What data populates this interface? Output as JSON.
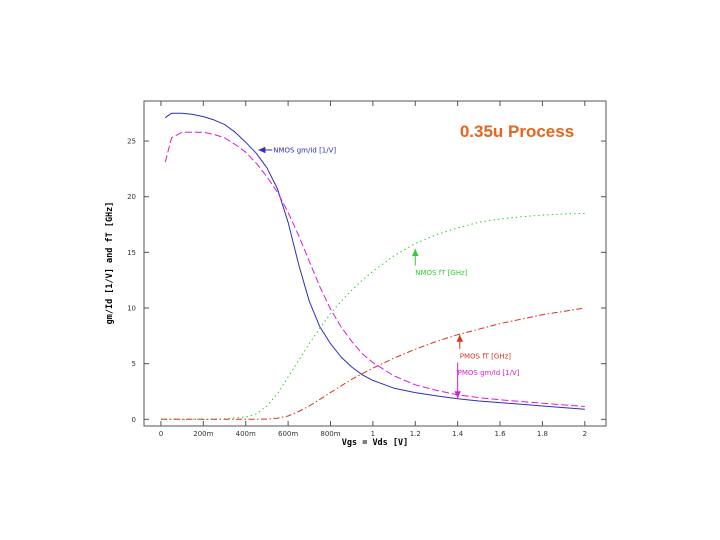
{
  "chart_data": {
    "type": "line",
    "title": "0.35u Process",
    "xlabel": "Vgs = Vds  [V]",
    "ylabel": "gm/Id  [1/V]     and     fT  [GHz]",
    "xlim": [
      -0.08,
      2.1
    ],
    "ylim": [
      -0.6,
      28.6
    ],
    "x_ticks": [
      {
        "v": 0,
        "label": "0"
      },
      {
        "v": 0.2,
        "label": "200m"
      },
      {
        "v": 0.4,
        "label": "400m"
      },
      {
        "v": 0.6,
        "label": "600m"
      },
      {
        "v": 0.8,
        "label": "800m"
      },
      {
        "v": 1.0,
        "label": "1"
      },
      {
        "v": 1.2,
        "label": "1.2"
      },
      {
        "v": 1.4,
        "label": "1.4"
      },
      {
        "v": 1.6,
        "label": "1.6"
      },
      {
        "v": 1.8,
        "label": "1.8"
      },
      {
        "v": 2.0,
        "label": "2"
      }
    ],
    "y_ticks": [
      {
        "v": 0,
        "label": "0"
      },
      {
        "v": 5,
        "label": "5"
      },
      {
        "v": 10,
        "label": "10"
      },
      {
        "v": 15,
        "label": "15"
      },
      {
        "v": 20,
        "label": "20"
      },
      {
        "v": 25,
        "label": "25"
      }
    ],
    "grid": false,
    "series": [
      {
        "name": "NMOS gm/Id  [1/V]",
        "color": "#2f2fb8",
        "dash": "",
        "x": [
          0.02,
          0.05,
          0.1,
          0.15,
          0.2,
          0.25,
          0.3,
          0.35,
          0.4,
          0.45,
          0.5,
          0.55,
          0.6,
          0.65,
          0.7,
          0.75,
          0.8,
          0.85,
          0.9,
          0.95,
          1.0,
          1.1,
          1.2,
          1.3,
          1.4,
          1.5,
          1.6,
          1.7,
          1.8,
          1.9,
          2.0
        ],
        "y": [
          27.1,
          27.5,
          27.5,
          27.4,
          27.2,
          26.9,
          26.5,
          25.8,
          24.9,
          23.9,
          22.6,
          20.7,
          17.7,
          13.9,
          10.6,
          8.3,
          6.8,
          5.6,
          4.7,
          4.0,
          3.5,
          2.8,
          2.4,
          2.1,
          1.85,
          1.65,
          1.5,
          1.35,
          1.2,
          1.05,
          0.9
        ]
      },
      {
        "name": "PMOS gm/Id  [1/V]",
        "color": "#d81bd8",
        "dash": "7 3",
        "x": [
          0.02,
          0.05,
          0.1,
          0.15,
          0.2,
          0.25,
          0.3,
          0.35,
          0.4,
          0.45,
          0.5,
          0.55,
          0.6,
          0.65,
          0.7,
          0.75,
          0.8,
          0.85,
          0.9,
          0.95,
          1.0,
          1.1,
          1.2,
          1.3,
          1.4,
          1.5,
          1.6,
          1.7,
          1.8,
          1.9,
          2.0
        ],
        "y": [
          23.1,
          25.3,
          25.8,
          25.8,
          25.8,
          25.6,
          25.3,
          24.7,
          24.0,
          23.0,
          21.8,
          20.4,
          18.6,
          16.5,
          14.2,
          11.9,
          9.9,
          8.3,
          7.0,
          5.9,
          5.1,
          3.9,
          3.1,
          2.6,
          2.2,
          1.95,
          1.75,
          1.6,
          1.45,
          1.3,
          1.15
        ]
      },
      {
        "name": "NMOS fT  [GHz]",
        "color": "#33cc33",
        "dash": "1.5 3",
        "x": [
          0.0,
          0.1,
          0.2,
          0.3,
          0.4,
          0.45,
          0.5,
          0.55,
          0.6,
          0.65,
          0.7,
          0.75,
          0.8,
          0.85,
          0.9,
          0.95,
          1.0,
          1.1,
          1.2,
          1.3,
          1.4,
          1.5,
          1.6,
          1.7,
          1.8,
          1.9,
          2.0
        ],
        "y": [
          0.0,
          0.0,
          0.0,
          0.05,
          0.2,
          0.5,
          1.2,
          2.3,
          3.8,
          5.3,
          6.8,
          8.2,
          9.5,
          10.6,
          11.6,
          12.5,
          13.3,
          14.7,
          15.8,
          16.6,
          17.2,
          17.7,
          18.0,
          18.2,
          18.35,
          18.45,
          18.5
        ]
      },
      {
        "name": "PMOS fT  [GHz]",
        "color": "#d8331b",
        "dash": "6 2.5 1.5 2.5",
        "x": [
          0.0,
          0.2,
          0.4,
          0.5,
          0.55,
          0.6,
          0.65,
          0.7,
          0.75,
          0.8,
          0.85,
          0.9,
          0.95,
          1.0,
          1.1,
          1.2,
          1.3,
          1.4,
          1.5,
          1.6,
          1.7,
          1.8,
          1.9,
          2.0
        ],
        "y": [
          0.0,
          0.0,
          0.0,
          0.02,
          0.1,
          0.3,
          0.7,
          1.2,
          1.8,
          2.4,
          3.0,
          3.6,
          4.1,
          4.6,
          5.5,
          6.3,
          7.0,
          7.6,
          8.1,
          8.6,
          9.0,
          9.4,
          9.7,
          10.0
        ]
      }
    ],
    "annotations": [
      {
        "text": "NMOS gm/Id  [1/V]",
        "color": "#2f2fb8",
        "x": 0.53,
        "y": 24.2,
        "arrow_to": [
          0.46,
          24.2
        ]
      },
      {
        "text": "NMOS fT  [GHz]",
        "color": "#33cc33",
        "x": 1.2,
        "y": 13.2,
        "arrow_to": [
          1.2,
          15.3
        ]
      },
      {
        "text": "PMOS fT  [GHz]",
        "color": "#d8331b",
        "x": 1.41,
        "y": 5.7,
        "arrow_to": [
          1.41,
          7.6
        ]
      },
      {
        "text": "PMOS gm/Id  [1/V]",
        "color": "#d81bd8",
        "x": 1.4,
        "y": 4.2,
        "arrow_to": [
          1.4,
          1.9
        ]
      }
    ],
    "title_color": "#e8641e"
  }
}
